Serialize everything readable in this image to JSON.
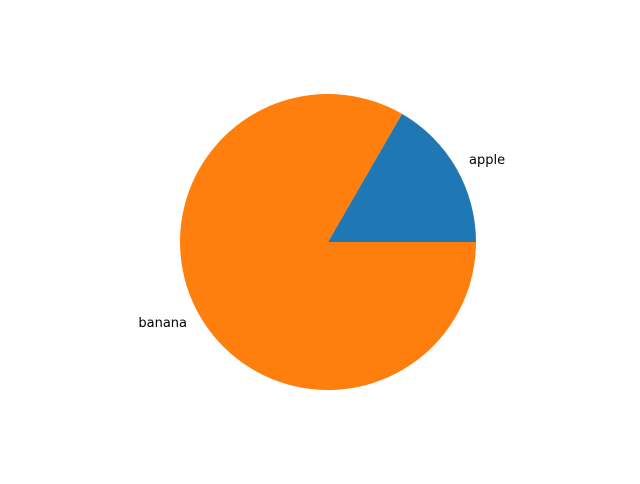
{
  "chart_data": {
    "type": "pie",
    "labels": [
      "apple",
      "banana"
    ],
    "values": [
      1,
      5
    ],
    "colors": [
      "#1f77b4",
      "#ff7f0e"
    ],
    "start_angle_deg": 0,
    "direction": "counterclockwise",
    "title": ""
  }
}
